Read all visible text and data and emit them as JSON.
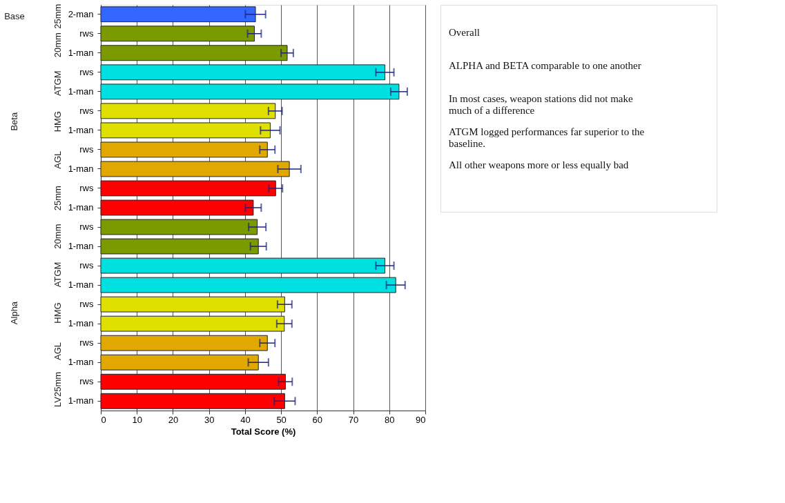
{
  "chart_data": {
    "type": "bar",
    "orientation": "horizontal",
    "xlabel": "Total Score (%)",
    "categories": [
      "2-man",
      "rws",
      "1-man",
      "rws",
      "1-man",
      "rws",
      "1-man",
      "rws",
      "1-man",
      "rws",
      "1-man",
      "rws",
      "1-man",
      "rws",
      "1-man",
      "rws",
      "1-man",
      "rws",
      "1-man",
      "rws",
      "1-man"
    ],
    "values": [
      42.9,
      42.6,
      51.7,
      78.8,
      82.7,
      48.4,
      47.0,
      46.2,
      52.3,
      48.5,
      42.3,
      43.4,
      43.7,
      78.8,
      81.8,
      51.0,
      50.9,
      46.2,
      43.7,
      51.2,
      51.0
    ],
    "errors": [
      2.8,
      1.9,
      1.7,
      2.5,
      2.3,
      1.9,
      2.7,
      2.1,
      3.2,
      1.9,
      2.2,
      2.4,
      2.2,
      2.5,
      2.6,
      2.0,
      2.1,
      2.1,
      2.8,
      1.9,
      2.9
    ],
    "colors": [
      "#3366ff",
      "#7a9a00",
      "#7a9a00",
      "#00e0e0",
      "#00e0e0",
      "#e0e000",
      "#e0e000",
      "#e0a800",
      "#e0a800",
      "#ff0000",
      "#ff0000",
      "#7a9a00",
      "#7a9a00",
      "#00e0e0",
      "#00e0e0",
      "#e0e000",
      "#e0e000",
      "#e0a800",
      "#e0a800",
      "#ff0000",
      "#ff0000"
    ],
    "xlim": [
      0,
      90
    ],
    "xticks": [
      0,
      10,
      20,
      30,
      40,
      50,
      60,
      70,
      80,
      90
    ],
    "grid": "x",
    "annotations": [
      "Base",
      "25mm",
      "Beta",
      "20mm",
      "ATGM",
      "HMG",
      "AGL",
      "25mm",
      "Alpha",
      "20mm",
      "ATGM",
      "HMG",
      "AGL",
      "LV25mm",
      "Overall",
      "ALPHA and BETA comparable to one another",
      "In most cases, weapon stations did not make much of a difference",
      "ATGM logged performances far superior to the baseline.",
      "All other weapons more or less equally bad"
    ]
  }
}
